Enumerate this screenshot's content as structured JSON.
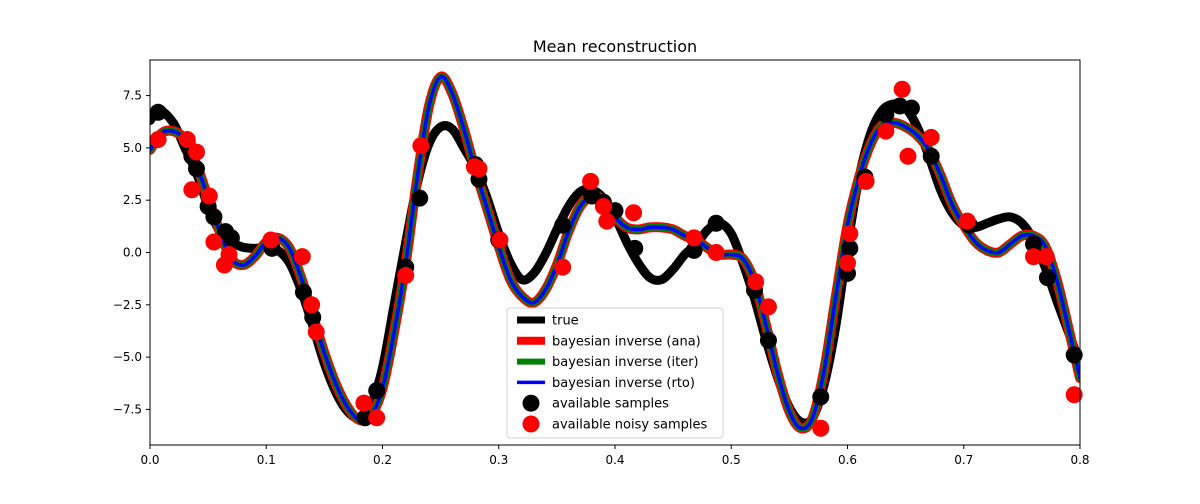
{
  "chart_data": {
    "type": "line",
    "title": "Mean reconstruction",
    "xlabel": "",
    "ylabel": "",
    "xlim": [
      0.0,
      0.8
    ],
    "ylim": [
      -9.2,
      9.2
    ],
    "x_ticks": [
      0.0,
      0.1,
      0.2,
      0.3,
      0.4,
      0.5,
      0.6,
      0.7,
      0.8
    ],
    "x_tick_labels": [
      "0.0",
      "0.1",
      "0.2",
      "0.3",
      "0.4",
      "0.5",
      "0.6",
      "0.7",
      "0.8"
    ],
    "y_ticks": [
      -7.5,
      -5.0,
      -2.5,
      0.0,
      2.5,
      5.0,
      7.5
    ],
    "y_tick_labels": [
      "−7.5",
      "−5.0",
      "−2.5",
      "0.0",
      "2.5",
      "5.0",
      "7.5"
    ],
    "grid": false,
    "legend_position": "bottom-center",
    "series": [
      {
        "name": "true",
        "color": "#000000",
        "x": [
          0.0,
          0.008,
          0.02,
          0.03,
          0.04,
          0.05,
          0.06,
          0.07,
          0.08,
          0.09,
          0.1,
          0.11,
          0.12,
          0.13,
          0.14,
          0.15,
          0.16,
          0.17,
          0.18,
          0.19,
          0.2,
          0.21,
          0.22,
          0.23,
          0.24,
          0.25,
          0.26,
          0.27,
          0.28,
          0.29,
          0.3,
          0.31,
          0.32,
          0.33,
          0.34,
          0.35,
          0.36,
          0.37,
          0.38,
          0.39,
          0.4,
          0.41,
          0.42,
          0.43,
          0.44,
          0.45,
          0.46,
          0.47,
          0.48,
          0.49,
          0.5,
          0.51,
          0.52,
          0.53,
          0.54,
          0.55,
          0.56,
          0.57,
          0.58,
          0.59,
          0.6,
          0.61,
          0.62,
          0.63,
          0.64,
          0.65,
          0.66,
          0.67,
          0.68,
          0.69,
          0.7,
          0.71,
          0.72,
          0.73,
          0.74,
          0.75,
          0.76,
          0.77,
          0.78,
          0.79,
          0.8
        ],
        "y": [
          6.3,
          6.8,
          6.2,
          5.0,
          3.8,
          2.2,
          1.0,
          0.5,
          0.25,
          0.2,
          0.25,
          0.1,
          -0.5,
          -1.8,
          -3.5,
          -5.3,
          -6.7,
          -7.6,
          -7.9,
          -7.3,
          -5.5,
          -2.5,
          0.5,
          3.3,
          5.2,
          6.0,
          5.9,
          5.0,
          4.0,
          2.6,
          0.9,
          -0.5,
          -1.3,
          -1.0,
          -0.1,
          1.1,
          2.2,
          2.9,
          3.0,
          2.6,
          1.7,
          0.5,
          -0.5,
          -1.2,
          -1.3,
          -0.8,
          -0.1,
          0.4,
          1.1,
          1.4,
          0.9,
          -0.5,
          -2.2,
          -4.2,
          -6.0,
          -7.4,
          -8.1,
          -7.9,
          -6.3,
          -3.5,
          0.3,
          3.6,
          5.7,
          6.8,
          7.1,
          6.9,
          6.0,
          4.6,
          3.0,
          1.9,
          1.3,
          1.2,
          1.4,
          1.6,
          1.7,
          1.4,
          0.6,
          -0.7,
          -2.3,
          -3.8,
          -5.3
        ]
      },
      {
        "name": "bayesian inverse (ana)",
        "color": "#ff0000",
        "x": [
          0.0,
          0.01,
          0.02,
          0.03,
          0.04,
          0.05,
          0.06,
          0.07,
          0.08,
          0.09,
          0.1,
          0.11,
          0.12,
          0.13,
          0.14,
          0.15,
          0.16,
          0.17,
          0.18,
          0.19,
          0.2,
          0.21,
          0.22,
          0.23,
          0.24,
          0.25,
          0.26,
          0.27,
          0.28,
          0.29,
          0.3,
          0.31,
          0.32,
          0.33,
          0.34,
          0.35,
          0.36,
          0.37,
          0.38,
          0.39,
          0.4,
          0.41,
          0.42,
          0.43,
          0.44,
          0.45,
          0.46,
          0.47,
          0.48,
          0.49,
          0.5,
          0.51,
          0.52,
          0.53,
          0.54,
          0.55,
          0.56,
          0.57,
          0.58,
          0.59,
          0.6,
          0.61,
          0.62,
          0.63,
          0.64,
          0.65,
          0.66,
          0.67,
          0.68,
          0.69,
          0.7,
          0.71,
          0.72,
          0.73,
          0.74,
          0.75,
          0.76,
          0.77,
          0.78,
          0.79,
          0.8
        ],
        "y": [
          4.9,
          5.7,
          5.8,
          5.4,
          4.2,
          2.6,
          1.0,
          -0.3,
          -0.6,
          -0.2,
          0.5,
          0.7,
          0.2,
          -1.2,
          -3.0,
          -4.8,
          -6.3,
          -7.4,
          -8.0,
          -7.8,
          -6.5,
          -3.8,
          -0.5,
          3.6,
          7.0,
          8.4,
          7.6,
          5.9,
          3.9,
          2.1,
          0.3,
          -1.3,
          -2.1,
          -2.4,
          -1.8,
          -0.6,
          1.0,
          2.2,
          2.7,
          2.5,
          1.7,
          1.2,
          1.1,
          1.2,
          1.2,
          1.1,
          0.8,
          0.6,
          0.2,
          -0.1,
          -0.1,
          -0.3,
          -1.4,
          -3.5,
          -5.8,
          -7.6,
          -8.4,
          -7.9,
          -5.6,
          -2.1,
          1.3,
          3.6,
          5.2,
          6.1,
          6.2,
          6.0,
          5.6,
          4.9,
          3.7,
          2.3,
          1.3,
          0.5,
          0.1,
          0.0,
          0.4,
          0.8,
          0.8,
          0.3,
          -1.3,
          -3.6,
          -6.0
        ]
      },
      {
        "name": "bayesian inverse (iter)",
        "color": "#008000",
        "x": [
          0.0,
          0.01,
          0.02,
          0.03,
          0.04,
          0.05,
          0.06,
          0.07,
          0.08,
          0.09,
          0.1,
          0.11,
          0.12,
          0.13,
          0.14,
          0.15,
          0.16,
          0.17,
          0.18,
          0.19,
          0.2,
          0.21,
          0.22,
          0.23,
          0.24,
          0.25,
          0.26,
          0.27,
          0.28,
          0.29,
          0.3,
          0.31,
          0.32,
          0.33,
          0.34,
          0.35,
          0.36,
          0.37,
          0.38,
          0.39,
          0.4,
          0.41,
          0.42,
          0.43,
          0.44,
          0.45,
          0.46,
          0.47,
          0.48,
          0.49,
          0.5,
          0.51,
          0.52,
          0.53,
          0.54,
          0.55,
          0.56,
          0.57,
          0.58,
          0.59,
          0.6,
          0.61,
          0.62,
          0.63,
          0.64,
          0.65,
          0.66,
          0.67,
          0.68,
          0.69,
          0.7,
          0.71,
          0.72,
          0.73,
          0.74,
          0.75,
          0.76,
          0.77,
          0.78,
          0.79,
          0.8
        ],
        "y": [
          4.9,
          5.7,
          5.8,
          5.4,
          4.2,
          2.6,
          1.0,
          -0.3,
          -0.6,
          -0.2,
          0.5,
          0.7,
          0.2,
          -1.2,
          -3.0,
          -4.8,
          -6.3,
          -7.4,
          -8.0,
          -7.8,
          -6.5,
          -3.8,
          -0.5,
          3.6,
          7.0,
          8.4,
          7.6,
          5.9,
          3.9,
          2.1,
          0.3,
          -1.3,
          -2.1,
          -2.4,
          -1.8,
          -0.6,
          1.0,
          2.2,
          2.7,
          2.5,
          1.7,
          1.2,
          1.1,
          1.2,
          1.2,
          1.1,
          0.8,
          0.6,
          0.2,
          -0.1,
          -0.1,
          -0.3,
          -1.4,
          -3.5,
          -5.8,
          -7.6,
          -8.4,
          -7.9,
          -5.6,
          -2.1,
          1.3,
          3.6,
          5.2,
          6.1,
          6.2,
          6.0,
          5.6,
          4.9,
          3.7,
          2.3,
          1.3,
          0.5,
          0.1,
          0.0,
          0.4,
          0.8,
          0.8,
          0.3,
          -1.3,
          -3.6,
          -6.0
        ]
      },
      {
        "name": "bayesian inverse (rto)",
        "color": "#0000ff",
        "x": [
          0.0,
          0.01,
          0.02,
          0.03,
          0.04,
          0.05,
          0.06,
          0.07,
          0.08,
          0.09,
          0.1,
          0.11,
          0.12,
          0.13,
          0.14,
          0.15,
          0.16,
          0.17,
          0.18,
          0.19,
          0.2,
          0.21,
          0.22,
          0.23,
          0.24,
          0.25,
          0.26,
          0.27,
          0.28,
          0.29,
          0.3,
          0.31,
          0.32,
          0.33,
          0.34,
          0.35,
          0.36,
          0.37,
          0.38,
          0.39,
          0.4,
          0.41,
          0.42,
          0.43,
          0.44,
          0.45,
          0.46,
          0.47,
          0.48,
          0.49,
          0.5,
          0.51,
          0.52,
          0.53,
          0.54,
          0.55,
          0.56,
          0.57,
          0.58,
          0.59,
          0.6,
          0.61,
          0.62,
          0.63,
          0.64,
          0.65,
          0.66,
          0.67,
          0.68,
          0.69,
          0.7,
          0.71,
          0.72,
          0.73,
          0.74,
          0.75,
          0.76,
          0.77,
          0.78,
          0.79,
          0.8
        ],
        "y": [
          4.9,
          5.7,
          5.8,
          5.4,
          4.2,
          2.6,
          1.0,
          -0.3,
          -0.6,
          -0.2,
          0.5,
          0.7,
          0.2,
          -1.2,
          -3.0,
          -4.8,
          -6.3,
          -7.4,
          -8.0,
          -7.8,
          -6.5,
          -3.8,
          -0.5,
          3.6,
          7.0,
          8.4,
          7.6,
          5.9,
          3.9,
          2.1,
          0.3,
          -1.3,
          -2.1,
          -2.4,
          -1.8,
          -0.6,
          1.0,
          2.2,
          2.7,
          2.5,
          1.7,
          1.2,
          1.1,
          1.2,
          1.2,
          1.1,
          0.8,
          0.6,
          0.2,
          -0.1,
          -0.1,
          -0.3,
          -1.4,
          -3.5,
          -5.8,
          -7.6,
          -8.4,
          -7.9,
          -5.6,
          -2.1,
          1.3,
          3.6,
          5.2,
          6.1,
          6.2,
          6.0,
          5.6,
          4.9,
          3.7,
          2.3,
          1.3,
          0.5,
          0.1,
          0.0,
          0.4,
          0.8,
          0.8,
          0.3,
          -1.3,
          -3.6,
          -6.0
        ]
      }
    ],
    "scatter": [
      {
        "name": "available samples",
        "color": "#000000",
        "x": [
          0.007,
          0.032,
          0.036,
          0.04,
          0.05,
          0.055,
          0.065,
          0.07,
          0.105,
          0.132,
          0.14,
          0.185,
          0.195,
          0.22,
          0.232,
          0.28,
          0.283,
          0.3,
          0.355,
          0.38,
          0.39,
          0.4,
          0.417,
          0.468,
          0.487,
          0.52,
          0.532,
          0.577,
          0.6,
          0.602,
          0.615,
          0.633,
          0.645,
          0.655,
          0.672,
          0.705,
          0.76,
          0.772,
          0.795
        ],
        "y": [
          6.7,
          5.3,
          4.6,
          4.0,
          2.2,
          1.7,
          1.0,
          0.7,
          0.2,
          -1.9,
          -3.1,
          -7.9,
          -6.6,
          -0.7,
          2.6,
          4.2,
          3.5,
          0.6,
          1.3,
          2.7,
          2.4,
          2.0,
          0.2,
          0.1,
          1.4,
          -1.8,
          -4.2,
          -6.9,
          -1.0,
          0.2,
          3.6,
          6.6,
          7.0,
          6.9,
          4.6,
          1.3,
          0.4,
          -1.2,
          -4.9
        ]
      },
      {
        "name": "available noisy samples",
        "color": "#ff0000",
        "x": [
          0.007,
          0.032,
          0.036,
          0.04,
          0.051,
          0.055,
          0.064,
          0.068,
          0.104,
          0.131,
          0.139,
          0.143,
          0.184,
          0.195,
          0.22,
          0.233,
          0.279,
          0.283,
          0.301,
          0.355,
          0.379,
          0.39,
          0.393,
          0.416,
          0.468,
          0.487,
          0.521,
          0.532,
          0.577,
          0.6,
          0.602,
          0.616,
          0.633,
          0.647,
          0.652,
          0.672,
          0.703,
          0.76,
          0.771,
          0.795
        ],
        "y": [
          5.4,
          5.4,
          3.0,
          4.8,
          2.7,
          0.5,
          -0.6,
          -0.1,
          0.6,
          -0.2,
          -2.5,
          -3.8,
          -7.2,
          -7.9,
          -1.1,
          5.1,
          4.1,
          4.0,
          0.6,
          -0.7,
          3.4,
          2.2,
          1.5,
          1.9,
          0.7,
          0.0,
          -1.4,
          -2.6,
          -8.4,
          -0.5,
          0.9,
          3.4,
          5.8,
          7.8,
          4.6,
          5.5,
          1.5,
          -0.2,
          -0.2,
          -6.8
        ]
      }
    ]
  }
}
